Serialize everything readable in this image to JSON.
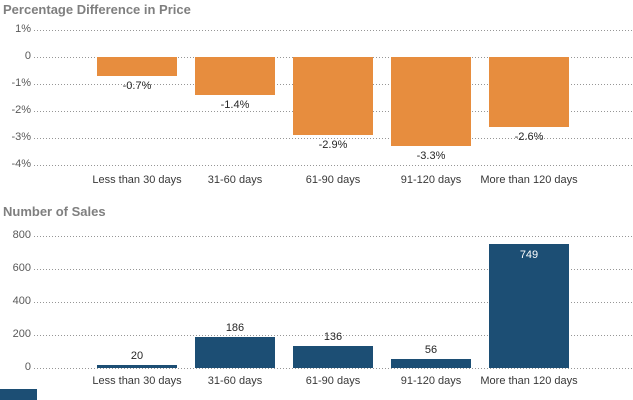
{
  "colors": {
    "background": "#FFFFFF",
    "bar_orange": "#E78D3E",
    "bar_navy": "#1C4E74",
    "title": "#7F7F7F",
    "tick": "#595959",
    "value_label": "#262626",
    "value_label_inside": "#FFFFFF",
    "category": "#383838",
    "grid": "#969696"
  },
  "categories": [
    "Less than 30 days",
    "31-60 days",
    "61-90 days",
    "91-120 days",
    "More than 120 days"
  ],
  "chart_data": [
    {
      "type": "bar",
      "title": "Percentage Difference in Price",
      "categories": [
        "Less than 30 days",
        "31-60 days",
        "61-90 days",
        "91-120 days",
        "More than 120 days"
      ],
      "values": [
        -0.7,
        -1.4,
        -2.9,
        -3.3,
        -2.6
      ],
      "value_labels": [
        "-0.7%",
        "-1.4%",
        "-2.9%",
        "-3.3%",
        "-2.6%"
      ],
      "yticks": [
        {
          "value": 1,
          "label": "1%"
        },
        {
          "value": 0,
          "label": "0"
        },
        {
          "value": -1,
          "label": "-1%"
        },
        {
          "value": -2,
          "label": "-2%"
        },
        {
          "value": -3,
          "label": "-3%"
        },
        {
          "value": -4,
          "label": "-4%"
        }
      ],
      "ylim": [
        -4,
        1
      ],
      "grid": "dotted horizontal",
      "legend": "none",
      "bar_color": "#E78D3E"
    },
    {
      "type": "bar",
      "title": "Number of Sales",
      "categories": [
        "Less than 30 days",
        "31-60 days",
        "61-90 days",
        "91-120 days",
        "More than 120 days"
      ],
      "values": [
        20,
        186,
        136,
        56,
        749
      ],
      "value_labels": [
        "20",
        "186",
        "136",
        "56",
        "749"
      ],
      "yticks": [
        {
          "value": 800,
          "label": "800"
        },
        {
          "value": 600,
          "label": "600"
        },
        {
          "value": 400,
          "label": "400"
        },
        {
          "value": 200,
          "label": "200"
        },
        {
          "value": 0,
          "label": "0"
        }
      ],
      "ylim": [
        0,
        800
      ],
      "grid": "dotted horizontal",
      "legend": "none",
      "bar_color": "#1C4E74"
    }
  ]
}
